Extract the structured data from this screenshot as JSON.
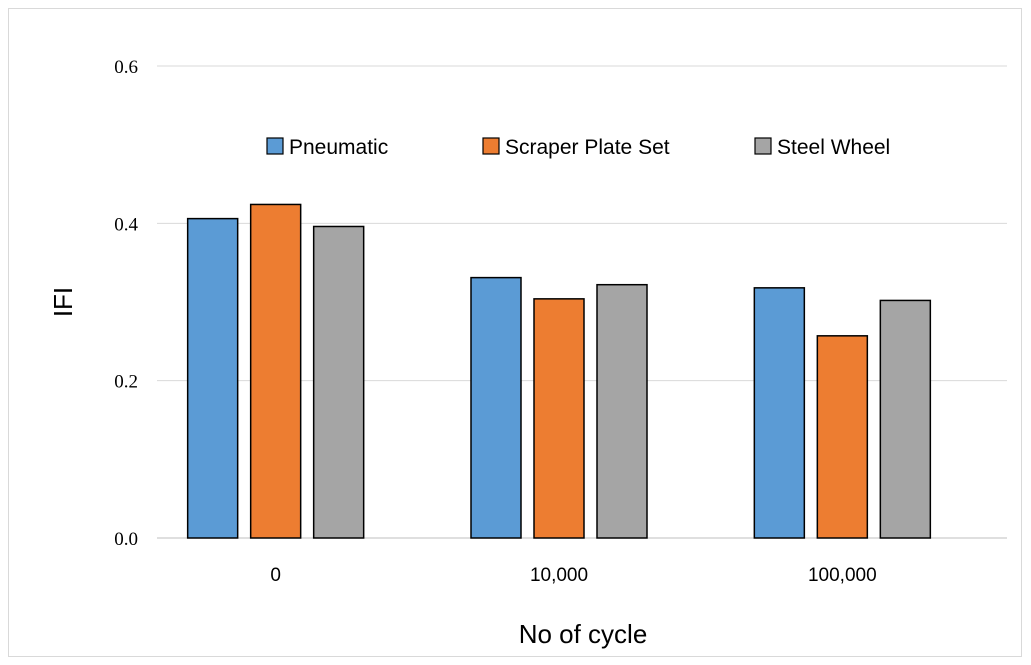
{
  "chart_data": {
    "type": "bar",
    "title": "",
    "xlabel": "No of cycle",
    "ylabel": "IFI",
    "categories": [
      "0",
      "10,000",
      "100,000"
    ],
    "series": [
      {
        "name": "Pneumatic",
        "values": [
          0.406,
          0.331,
          0.318
        ],
        "color": "#5b9bd5"
      },
      {
        "name": "Scraper Plate Set",
        "values": [
          0.424,
          0.304,
          0.257
        ],
        "color": "#ed7d31"
      },
      {
        "name": "Steel Wheel",
        "values": [
          0.396,
          0.322,
          0.302
        ],
        "color": "#a5a5a5"
      }
    ],
    "yticks": [
      "0.0",
      "0.2",
      "0.4",
      "0.6"
    ],
    "ylim": [
      0,
      0.6
    ],
    "grid": true,
    "legend_position": "top"
  }
}
